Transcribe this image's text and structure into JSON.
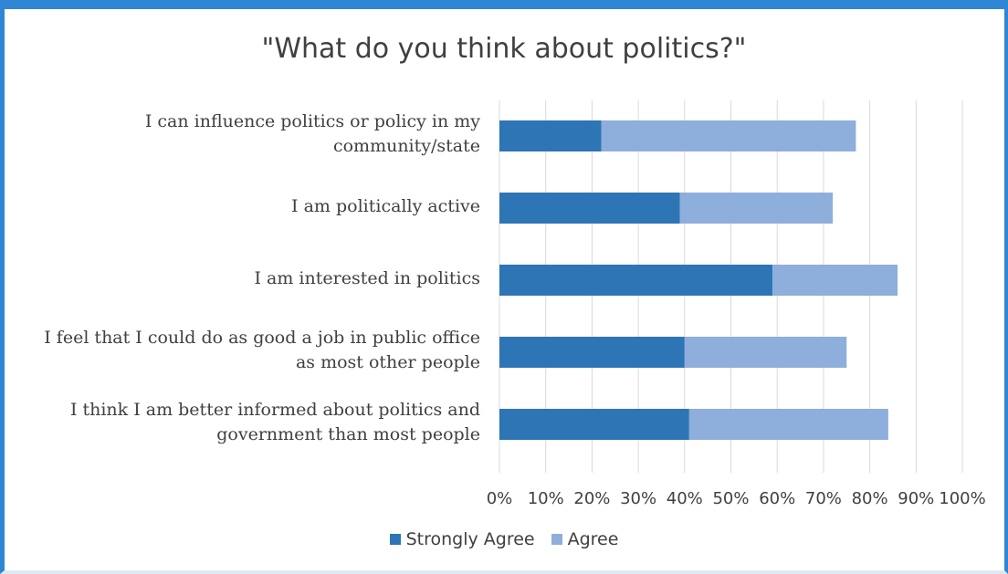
{
  "chart_data": {
    "type": "bar",
    "orientation": "horizontal",
    "stacked": true,
    "title": "\"What do you think about politics?\"",
    "categories": [
      [
        "I can influence politics or policy in my",
        "community/state"
      ],
      [
        "I am politically active"
      ],
      [
        "I am interested in politics"
      ],
      [
        "I feel that I could do as good a job in public office",
        "as most other people"
      ],
      [
        "I think I am better informed about politics and",
        "government than most people"
      ]
    ],
    "series": [
      {
        "name": "Strongly Agree",
        "color": "#2e75b6",
        "values": [
          22,
          39,
          59,
          40,
          41
        ]
      },
      {
        "name": "Agree",
        "color": "#8eaedb",
        "values": [
          55,
          33,
          27,
          35,
          43
        ]
      }
    ],
    "xlim": [
      0,
      100
    ],
    "x_ticks": [
      "0%",
      "10%",
      "20%",
      "30%",
      "40%",
      "50%",
      "60%",
      "70%",
      "80%",
      "90%",
      "100%"
    ],
    "grid": true,
    "legend_position": "bottom"
  }
}
